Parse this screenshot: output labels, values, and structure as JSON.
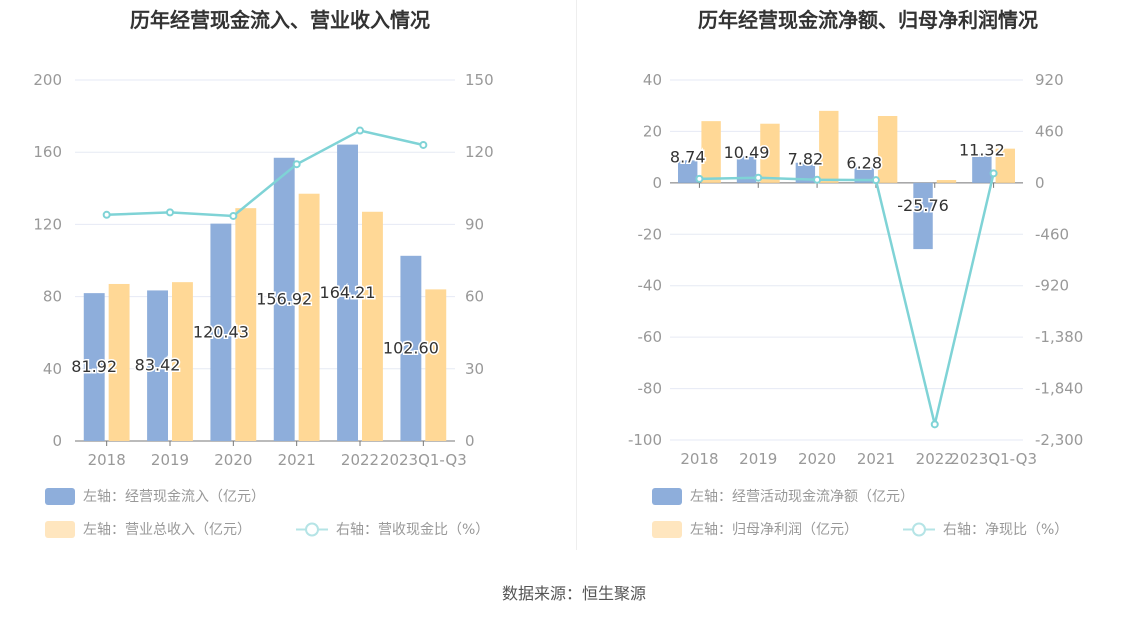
{
  "chart_data": [
    {
      "type": "bar",
      "title": "历年经营现金流入、营业收入情况",
      "categories": [
        "2018",
        "2019",
        "2020",
        "2021",
        "2022",
        "2023Q1-Q3"
      ],
      "ylim_left": [
        0,
        200
      ],
      "yticks_left": [
        "0",
        "40",
        "80",
        "120",
        "160",
        "200"
      ],
      "ylim_right": [
        0,
        150
      ],
      "yticks_right": [
        "0",
        "30",
        "60",
        "90",
        "120",
        "150"
      ],
      "series": [
        {
          "name": "左轴：经营现金流入（亿元）",
          "axis": "left",
          "type": "bar",
          "color": "#8eaedb",
          "values": [
            81.92,
            83.42,
            120.43,
            156.92,
            164.21,
            102.6
          ],
          "labels": [
            "81.92",
            "83.42",
            "120.43",
            "156.92",
            "164.21",
            "102.60"
          ]
        },
        {
          "name": "左轴：营业总收入（亿元）",
          "axis": "left",
          "type": "bar",
          "color": "#ffd896",
          "values": [
            87,
            88,
            129,
            137,
            127,
            84
          ]
        },
        {
          "name": "右轴：营收现金比（%）",
          "axis": "right",
          "type": "line",
          "color": "#7fd3d6",
          "values": [
            94,
            95,
            93.5,
            115,
            129,
            123
          ]
        }
      ]
    },
    {
      "type": "bar",
      "title": "历年经营现金流净额、归母净利润情况",
      "categories": [
        "2018",
        "2019",
        "2020",
        "2021",
        "2022",
        "2023Q1-Q3"
      ],
      "ylim_left": [
        -100,
        40
      ],
      "yticks_left": [
        "-100",
        "-80",
        "-60",
        "-40",
        "-20",
        "0",
        "20",
        "40"
      ],
      "ylim_right": [
        -2300,
        920
      ],
      "yticks_right": [
        "-2,300",
        "-1,840",
        "-1,380",
        "-920",
        "-460",
        "0",
        "460",
        "920"
      ],
      "series": [
        {
          "name": "左轴：经营活动现金流净额（亿元）",
          "axis": "left",
          "type": "bar",
          "color": "#8eaedb",
          "values": [
            8.74,
            10.49,
            7.82,
            6.28,
            -25.76,
            11.32
          ],
          "labels": [
            "8.74",
            "10.49",
            "7.82",
            "6.28",
            "-25.76",
            "11.32"
          ]
        },
        {
          "name": "左轴：归母净利润（亿元）",
          "axis": "left",
          "type": "bar",
          "color": "#ffd896",
          "values": [
            24,
            23,
            28,
            26,
            1.1,
            13.3
          ]
        },
        {
          "name": "右轴：净现比（%）",
          "axis": "right",
          "type": "line",
          "color": "#7fd3d6",
          "values": [
            36,
            46,
            28,
            24,
            -2160,
            85
          ]
        }
      ]
    }
  ],
  "footer": "数据来源：恒生聚源"
}
